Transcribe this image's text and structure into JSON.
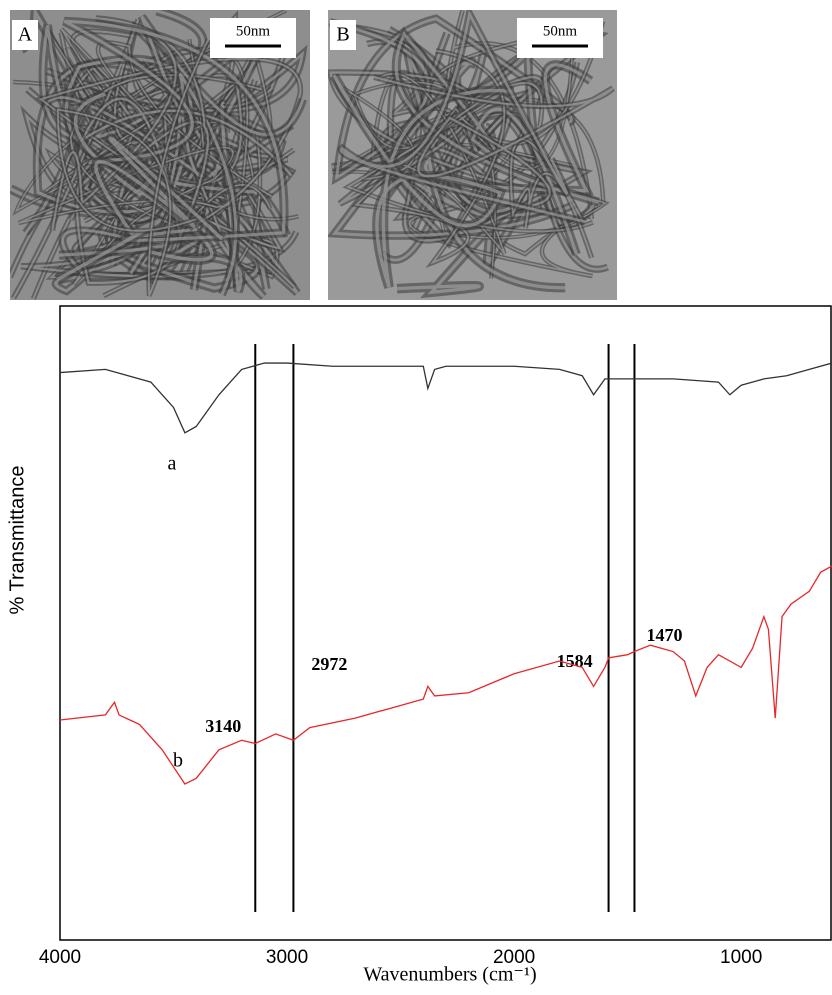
{
  "images": [
    {
      "label": "A",
      "scale": "50nm"
    },
    {
      "label": "B",
      "scale": "50nm"
    }
  ],
  "chart_data": {
    "type": "line",
    "xlabel": "Wavenumbers (cm⁻¹)",
    "ylabel": "% Transmittance",
    "xlim": [
      4000,
      600
    ],
    "ylim": [
      0,
      100
    ],
    "xticks": [
      4000,
      3000,
      2000,
      1000
    ],
    "vlines": [
      3140,
      2972,
      1584,
      1470
    ],
    "series": [
      {
        "name": "a",
        "color": "#333333",
        "x": [
          4000,
          3800,
          3600,
          3500,
          3450,
          3400,
          3300,
          3200,
          3100,
          3000,
          2800,
          2400,
          2380,
          2350,
          2300,
          2000,
          1800,
          1700,
          1650,
          1600,
          1500,
          1300,
          1100,
          1050,
          1000,
          900,
          800,
          700,
          600
        ],
        "values": [
          89.5,
          90,
          88,
          84,
          80,
          81,
          86,
          90,
          91,
          91,
          90.5,
          90.5,
          87,
          90,
          90.5,
          90.5,
          90,
          89,
          86,
          88.5,
          88.5,
          88.5,
          88,
          86,
          87.5,
          88.5,
          89,
          90,
          91
        ]
      },
      {
        "name": "b",
        "color": "#e8272b",
        "x": [
          4000,
          3800,
          3760,
          3740,
          3650,
          3550,
          3450,
          3400,
          3300,
          3200,
          3140,
          3050,
          2972,
          2900,
          2700,
          2400,
          2380,
          2350,
          2200,
          2000,
          1800,
          1700,
          1650,
          1600,
          1584,
          1500,
          1470,
          1400,
          1300,
          1250,
          1200,
          1150,
          1100,
          1000,
          950,
          900,
          880,
          850,
          820,
          780,
          700,
          650,
          600
        ],
        "values": [
          34.7,
          35.5,
          37.5,
          35.5,
          34,
          30,
          24.6,
          25.5,
          30,
          31.5,
          31,
          32.5,
          31.5,
          33.5,
          35,
          38,
          40,
          38.5,
          39,
          42,
          44,
          43,
          40,
          43,
          44.5,
          45,
          45.5,
          46.5,
          45.5,
          44,
          38.5,
          43,
          45,
          43,
          46,
          51,
          49,
          35,
          51,
          53,
          55,
          58,
          59
        ]
      }
    ]
  }
}
